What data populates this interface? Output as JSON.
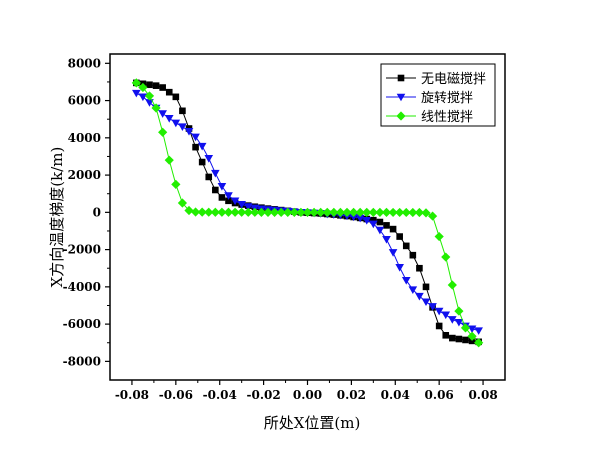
{
  "chart_data": {
    "type": "line",
    "title": "",
    "xlabel": "所处X位置(m)",
    "ylabel": "X方向温度梯度(k/m)",
    "xlim": [
      -0.09,
      0.09
    ],
    "ylim": [
      -9000,
      8500
    ],
    "xticks": [
      -0.08,
      -0.06,
      -0.04,
      -0.02,
      0.0,
      0.02,
      0.04,
      0.06,
      0.08
    ],
    "xtick_labels": [
      "-0.08",
      "-0.06",
      "-0.04",
      "-0.02",
      "0.00",
      "0.02",
      "0.04",
      "0.06",
      "0.08"
    ],
    "yticks": [
      -8000,
      -6000,
      -4000,
      -2000,
      0,
      2000,
      4000,
      6000,
      8000
    ],
    "ytick_labels": [
      "-8000",
      "-6000",
      "-4000",
      "-2000",
      "0",
      "2000",
      "4000",
      "6000",
      "8000"
    ],
    "legend_position": "top-right",
    "x": [
      -0.078,
      -0.075,
      -0.072,
      -0.069,
      -0.066,
      -0.063,
      -0.06,
      -0.057,
      -0.054,
      -0.051,
      -0.048,
      -0.045,
      -0.042,
      -0.039,
      -0.036,
      -0.033,
      -0.03,
      -0.027,
      -0.024,
      -0.021,
      -0.018,
      -0.015,
      -0.012,
      -0.009,
      -0.006,
      -0.003,
      0.0,
      0.003,
      0.006,
      0.009,
      0.012,
      0.015,
      0.018,
      0.021,
      0.024,
      0.027,
      0.03,
      0.033,
      0.036,
      0.039,
      0.042,
      0.045,
      0.048,
      0.051,
      0.054,
      0.057,
      0.06,
      0.063,
      0.066,
      0.069,
      0.072,
      0.075,
      0.078
    ],
    "series": [
      {
        "name": "无电磁搅拌",
        "color": "#000000",
        "marker": "square",
        "values": [
          6950,
          6900,
          6850,
          6800,
          6700,
          6450,
          6200,
          5450,
          4500,
          3500,
          2700,
          1900,
          1200,
          800,
          620,
          500,
          420,
          360,
          300,
          250,
          200,
          160,
          120,
          80,
          40,
          0,
          -20,
          -40,
          -60,
          -90,
          -120,
          -160,
          -200,
          -250,
          -300,
          -360,
          -420,
          -520,
          -700,
          -900,
          -1300,
          -1800,
          -2300,
          -3000,
          -4000,
          -5100,
          -6100,
          -6600,
          -6750,
          -6800,
          -6850,
          -6900,
          -6950
        ]
      },
      {
        "name": "旋转搅拌",
        "color": "#1010ee",
        "marker": "triangle-down",
        "values": [
          6400,
          6200,
          5900,
          5600,
          5300,
          5050,
          4800,
          4600,
          4350,
          4050,
          3550,
          2900,
          2100,
          1400,
          900,
          620,
          430,
          310,
          240,
          190,
          150,
          120,
          90,
          60,
          30,
          0,
          -20,
          -40,
          -60,
          -90,
          -120,
          -150,
          -190,
          -240,
          -310,
          -430,
          -620,
          -950,
          -1450,
          -2150,
          -2950,
          -3650,
          -4150,
          -4500,
          -4800,
          -5050,
          -5300,
          -5500,
          -5750,
          -5900,
          -6100,
          -6250,
          -6350
        ]
      },
      {
        "name": "线性搅拌",
        "color": "#22ee00",
        "marker": "diamond",
        "values": [
          6950,
          6700,
          6250,
          5600,
          4300,
          2800,
          1500,
          500,
          100,
          20,
          10,
          8,
          6,
          5,
          4,
          3,
          2,
          1,
          1,
          0,
          0,
          0,
          0,
          0,
          0,
          0,
          0,
          0,
          0,
          0,
          0,
          0,
          0,
          0,
          0,
          -1,
          -1,
          -2,
          -3,
          -4,
          -5,
          -6,
          -8,
          -10,
          -30,
          -200,
          -1300,
          -2400,
          -3900,
          -5300,
          -6200,
          -6650,
          -7000
        ]
      }
    ]
  }
}
